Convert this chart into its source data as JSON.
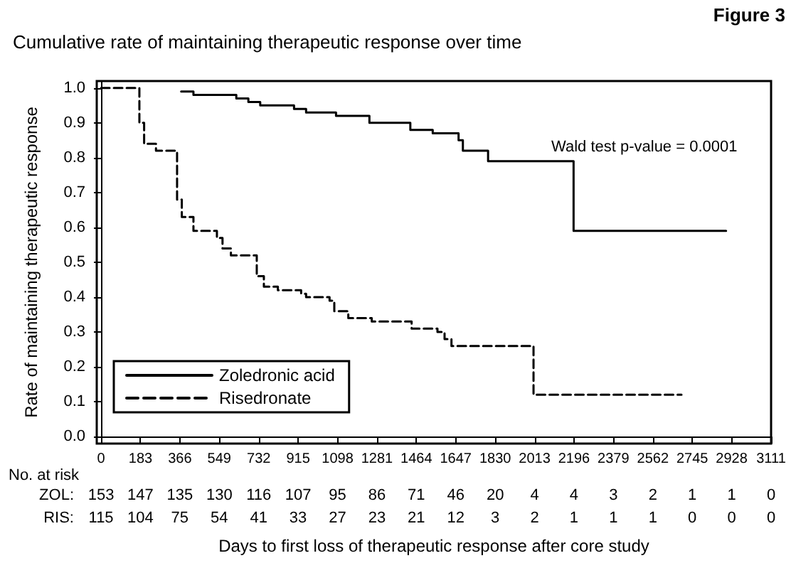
{
  "chart_data": {
    "type": "step",
    "title": "Cumulative rate of maintaining therapeutic response over time",
    "xlabel": "Days to first loss of therapeutic response after core study",
    "ylabel": "Rate of maintaining therapeutic response",
    "annotations": [
      "Figure 3",
      "Wald test p-value = 0.0001",
      "No. at risk",
      "ZOL: 153 147 135 130 116 107 95 86 71 46 20 4 4 3 2 1 1 0",
      "RIS: 115 104 75 54 41 33 27 23 21 12 3 2 1 1 1 0 0 0"
    ],
    "series": [
      {
        "name": "Zoledronic acid",
        "color": "#000000",
        "line_style": "solid",
        "x": [
          372,
          429,
          628,
          684,
          739,
          896,
          952,
          1091,
          1246,
          1436,
          1540,
          1660,
          1680,
          1797,
          2194,
          2902
        ],
        "values": [
          0.99,
          0.98,
          0.97,
          0.96,
          0.95,
          0.94,
          0.93,
          0.92,
          0.9,
          0.88,
          0.87,
          0.85,
          0.82,
          0.79,
          0.59,
          0.59
        ]
      },
      {
        "name": "Risedronate",
        "color": "#000000",
        "line_style": "dashed",
        "x": [
          0,
          178,
          200,
          255,
          353,
          375,
          429,
          538,
          564,
          603,
          723,
          756,
          821,
          929,
          952,
          1061,
          1083,
          1148,
          1257,
          1442,
          1562,
          1595,
          1627,
          2008,
          2695
        ],
        "values": [
          1.0,
          0.9,
          0.84,
          0.82,
          0.68,
          0.63,
          0.59,
          0.57,
          0.54,
          0.52,
          0.46,
          0.43,
          0.42,
          0.41,
          0.4,
          0.39,
          0.36,
          0.34,
          0.33,
          0.31,
          0.3,
          0.28,
          0.26,
          0.12,
          0.12
        ]
      }
    ],
    "xlim": [
      -20,
      3111
    ],
    "xticks": [
      0,
      183,
      366,
      549,
      732,
      915,
      1098,
      1281,
      1464,
      1647,
      1830,
      2013,
      2196,
      2379,
      2562,
      2745,
      2928,
      3111
    ],
    "ylim": [
      -0.02,
      1.02
    ],
    "yticks": [
      {
        "value": 0,
        "label": "0.0"
      },
      0.1,
      0.2,
      0.3,
      0.4,
      0.5,
      0.6,
      0.7,
      0.8,
      0.9,
      {
        "value": 1,
        "label": "1.0"
      }
    ],
    "legend": "bottom left",
    "marker": "none"
  }
}
